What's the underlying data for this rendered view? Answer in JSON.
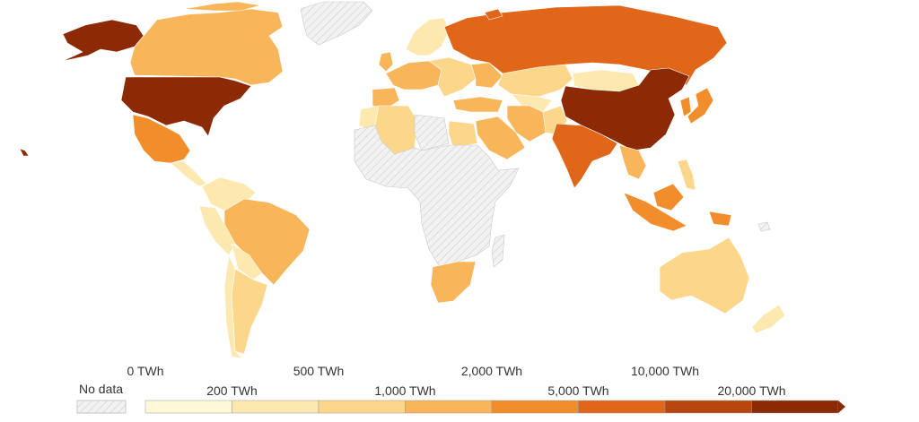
{
  "legend": {
    "no_data_label": "No data",
    "bins": [
      {
        "label_top": "0 TWh",
        "label_bottom": "200 TWh",
        "color": "#fef6cf"
      },
      {
        "label_top": "500 TWh",
        "label_bottom": "1,000 TWh",
        "color": "#fde7a6"
      },
      {
        "label_top": "2,000 TWh",
        "label_bottom": "5,000 TWh",
        "color": "#fbc766"
      },
      {
        "label_top": "10,000 TWh",
        "label_bottom": "20,000 TWh",
        "color": "#f59e32"
      }
    ],
    "labels": [
      "0 TWh",
      "200 TWh",
      "500 TWh",
      "1,000 TWh",
      "2,000 TWh",
      "5,000 TWh",
      "10,000 TWh",
      "20,000 TWh"
    ],
    "scale_colors": [
      "#fff8d6",
      "#fde9b0",
      "#fcd68a",
      "#f9b55a",
      "#f28d2b",
      "#e0661a",
      "#b8470f",
      "#8c2a06"
    ]
  },
  "no_data_color": "#e6e6e6",
  "countries": {
    "usa": 7,
    "canada": 3,
    "alaska": 7,
    "mexico": 4,
    "greenland": -1,
    "central_america": 1,
    "colombia": 1,
    "venezuela": 1,
    "brazil": 3,
    "peru": 1,
    "bolivia": 1,
    "argentina": 2,
    "chile": 1,
    "paraguay": 1,
    "russia": 5,
    "china": 7,
    "india": 5,
    "kazakhstan": 2,
    "mongolia": 1,
    "iran": 3,
    "saudi": 3,
    "turkey": 3,
    "egypt": 2,
    "algeria": 2,
    "libya": -1,
    "africa_nodata": -1,
    "south_africa": 3,
    "indonesia": 4,
    "australia": 2,
    "japan": 4,
    "korea": 4,
    "se_asia": 3,
    "pakistan": 2,
    "europe_west": 3,
    "europe_east": 2,
    "scandinavia": 1,
    "uk": 3,
    "spain": 3,
    "ukraine": 3,
    "new_zealand": 1,
    "philippines": 2,
    "central_asia": 1,
    "morocco": 1
  }
}
